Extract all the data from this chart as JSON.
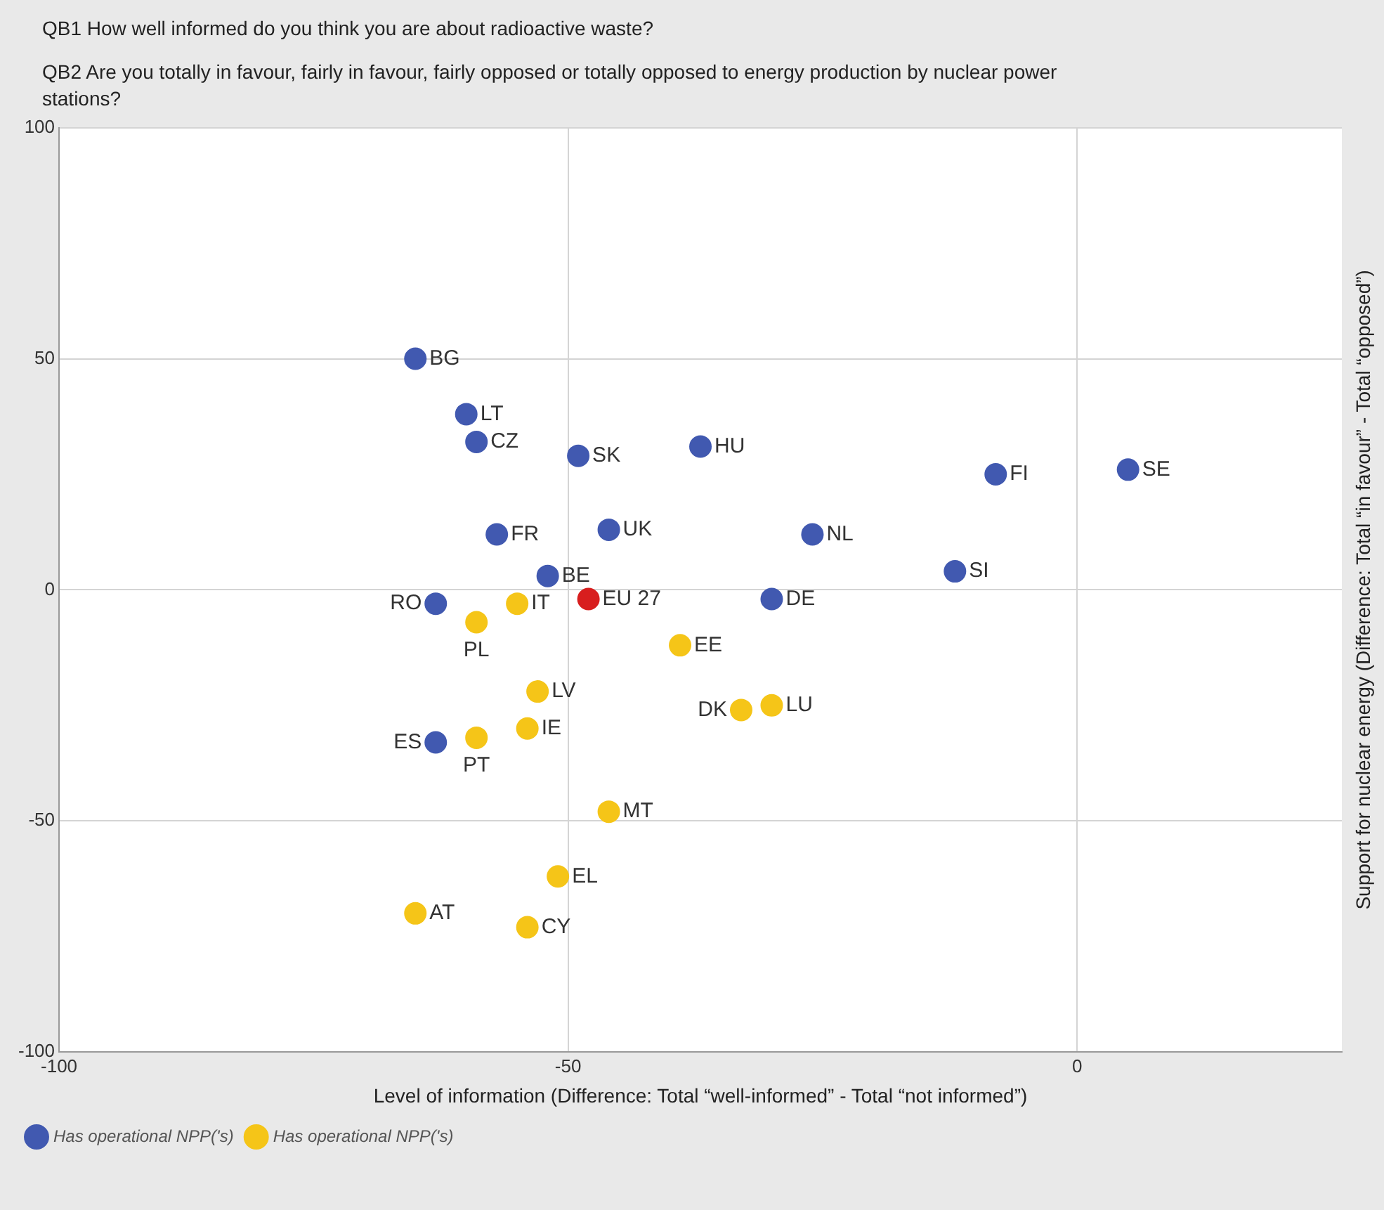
{
  "chart_data": {
    "type": "scatter",
    "title": "QB1 How well informed do you think you are about radioactive waste?",
    "subtitle": "QB2 Are you totally in favour, fairly in favour, fairly opposed or totally opposed to energy production by nuclear power stations?",
    "xlabel": "Level of information (Difference: Total “well-informed” - Total “not informed”)",
    "ylabel": "Support for nuclear energy (Difference: Total “in favour” - Total “opposed”)",
    "xlim": [
      -100,
      26
    ],
    "xticks": [
      -100,
      -50,
      0
    ],
    "ylim": [
      -100,
      100
    ],
    "yticks": [
      -100,
      -50,
      0,
      50,
      100
    ],
    "grid": true,
    "legend": "bottom left",
    "marker": "circle",
    "series": [
      {
        "name": "Has operational NPP('s)",
        "color": "#4159b0",
        "x": [
          -65,
          -60,
          -59,
          -49,
          -37,
          -57,
          -46,
          -26,
          -52,
          -63,
          -30,
          -63,
          -8,
          5,
          -12
        ],
        "values": [
          50,
          38,
          32,
          29,
          31,
          12,
          13,
          12,
          3,
          -3,
          -2,
          -33,
          25,
          26,
          4
        ]
      },
      {
        "name": "Has operational NPP('s)",
        "color": "#f5c518",
        "x": [
          -59,
          -55,
          -39,
          -53,
          -54,
          -59,
          -33,
          -30,
          -46,
          -51,
          -65,
          -54
        ],
        "values": [
          -7,
          -3,
          -12,
          -22,
          -30,
          -32,
          -26,
          -25,
          -48,
          -62,
          -70,
          -73
        ]
      },
      {
        "color": "#d81e1e",
        "x": [
          -48
        ],
        "values": [
          -2
        ]
      }
    ],
    "annotations": [
      {
        "text": "BG",
        "x": -65,
        "y": 50
      },
      {
        "text": "LT",
        "x": -60,
        "y": 38
      },
      {
        "text": "CZ",
        "x": -59,
        "y": 32
      },
      {
        "text": "SK",
        "x": -49,
        "y": 29
      },
      {
        "text": "HU",
        "x": -37,
        "y": 31
      },
      {
        "text": "FR",
        "x": -57,
        "y": 12
      },
      {
        "text": "UK",
        "x": -46,
        "y": 13
      },
      {
        "text": "NL",
        "x": -26,
        "y": 12
      },
      {
        "text": "BE",
        "x": -52,
        "y": 3
      },
      {
        "text": "RO",
        "x": -63,
        "y": -3
      },
      {
        "text": "DE",
        "x": -30,
        "y": -2
      },
      {
        "text": "ES",
        "x": -63,
        "y": -33
      },
      {
        "text": "FI",
        "x": -8,
        "y": 25
      },
      {
        "text": "SE",
        "x": 5,
        "y": 26
      },
      {
        "text": "SI",
        "x": -12,
        "y": 4
      },
      {
        "text": "PL",
        "x": -59,
        "y": -7
      },
      {
        "text": "IT",
        "x": -55,
        "y": -3
      },
      {
        "text": "EE",
        "x": -39,
        "y": -12
      },
      {
        "text": "LV",
        "x": -53,
        "y": -22
      },
      {
        "text": "IE",
        "x": -54,
        "y": -30
      },
      {
        "text": "PT",
        "x": -59,
        "y": -32
      },
      {
        "text": "DK",
        "x": -33,
        "y": -26
      },
      {
        "text": "LU",
        "x": -30,
        "y": -25
      },
      {
        "text": "MT",
        "x": -46,
        "y": -48
      },
      {
        "text": "EL",
        "x": -51,
        "y": -62
      },
      {
        "text": "AT",
        "x": -65,
        "y": -70
      },
      {
        "text": "CY",
        "x": -54,
        "y": -73
      },
      {
        "text": "EU 27",
        "x": -48,
        "y": -2
      }
    ]
  }
}
